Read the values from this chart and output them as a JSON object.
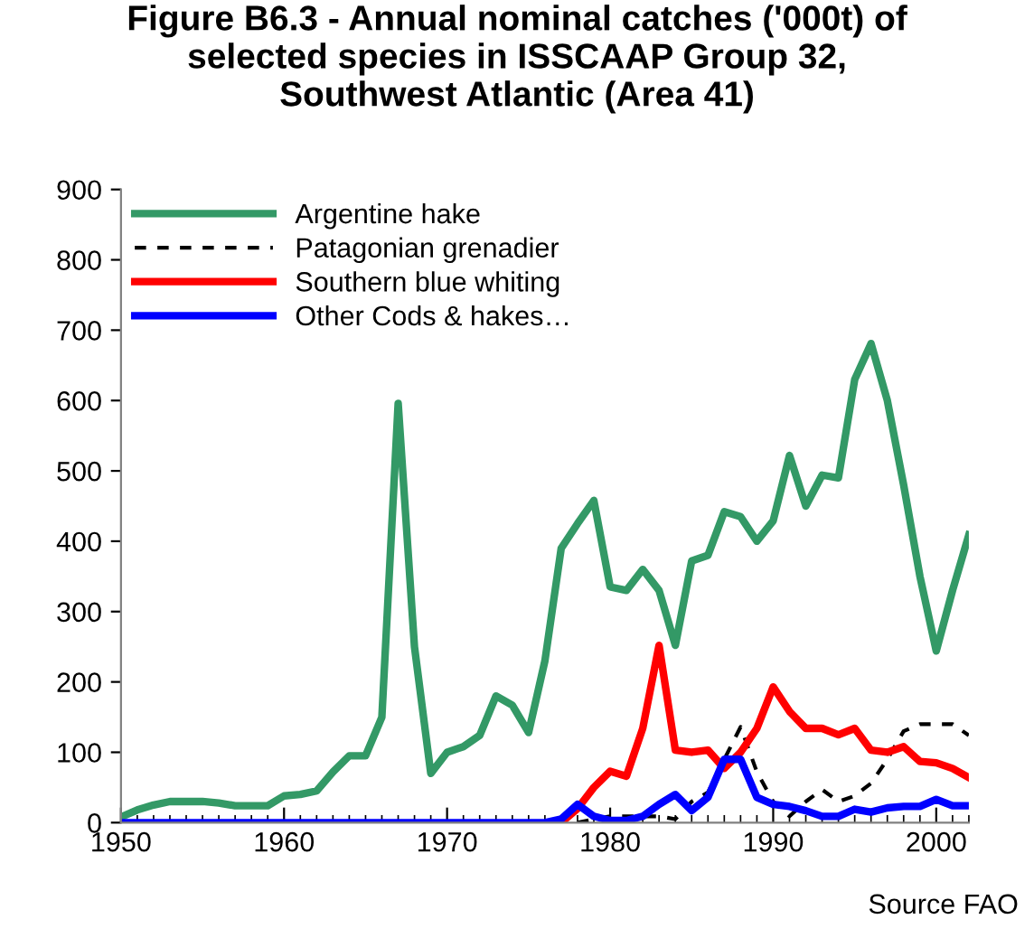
{
  "chart_data": {
    "type": "line",
    "title": "Figure B6.3 - Annual nominal catches ('000t) of\nselected species in ISSCAAP Group 32,\nSouthwest Atlantic (Area 41)",
    "x": [
      1950,
      1951,
      1952,
      1953,
      1954,
      1955,
      1956,
      1957,
      1958,
      1959,
      1960,
      1961,
      1962,
      1963,
      1964,
      1965,
      1966,
      1967,
      1968,
      1969,
      1970,
      1971,
      1972,
      1973,
      1974,
      1975,
      1976,
      1977,
      1978,
      1979,
      1980,
      1981,
      1982,
      1983,
      1984,
      1985,
      1986,
      1987,
      1988,
      1989,
      1990,
      1991,
      1992,
      1993,
      1994,
      1995,
      1996,
      1997,
      1998,
      1999,
      2000,
      2001,
      2002
    ],
    "series": [
      {
        "name": "Argentine hake",
        "color": "#339966",
        "line_style": "solid",
        "values": [
          8,
          18,
          25,
          30,
          30,
          30,
          28,
          24,
          24,
          24,
          38,
          40,
          45,
          72,
          95,
          95,
          150,
          596,
          250,
          70,
          100,
          108,
          124,
          180,
          167,
          128,
          230,
          390,
          425,
          458,
          335,
          330,
          360,
          330,
          252,
          372,
          380,
          442,
          435,
          400,
          429,
          522,
          450,
          494,
          490,
          630,
          681,
          600,
          480,
          350,
          244,
          330,
          409
        ]
      },
      {
        "name": "Patagonian grenadier",
        "color": "#000000",
        "line_style": "dashed",
        "values": [
          null,
          null,
          null,
          null,
          null,
          null,
          null,
          null,
          null,
          null,
          null,
          null,
          null,
          null,
          null,
          null,
          null,
          null,
          null,
          null,
          null,
          null,
          null,
          null,
          null,
          null,
          null,
          null,
          0,
          5,
          9,
          9,
          9,
          9,
          5,
          30,
          43,
          90,
          136,
          72,
          30,
          9,
          30,
          47,
          30,
          38,
          56,
          90,
          130,
          140,
          140,
          140,
          124
        ]
      },
      {
        "name": "Southern blue whiting",
        "color": "#ff0000",
        "line_style": "solid",
        "values": [
          null,
          null,
          null,
          null,
          null,
          null,
          null,
          null,
          null,
          null,
          null,
          null,
          null,
          null,
          null,
          null,
          null,
          null,
          null,
          null,
          null,
          null,
          null,
          null,
          null,
          null,
          null,
          0,
          20,
          50,
          73,
          66,
          134,
          252,
          103,
          100,
          103,
          77,
          100,
          134,
          193,
          158,
          134,
          134,
          125,
          134,
          103,
          100,
          108,
          87,
          85,
          77,
          64
        ]
      },
      {
        "name": "Other Cods & hakes…",
        "color": "#0000ff",
        "line_style": "solid",
        "values": [
          0,
          0,
          0,
          0,
          0,
          0,
          0,
          0,
          0,
          0,
          0,
          0,
          0,
          0,
          0,
          0,
          0,
          0,
          0,
          0,
          0,
          0,
          0,
          0,
          0,
          0,
          0,
          5,
          26,
          9,
          3,
          3,
          9,
          26,
          40,
          17,
          36,
          90,
          90,
          36,
          26,
          23,
          17,
          9,
          9,
          19,
          15,
          21,
          23,
          23,
          33,
          24,
          24
        ]
      }
    ],
    "xlim": [
      1950,
      2002
    ],
    "xticks": [
      1950,
      1960,
      1970,
      1980,
      1990,
      2000
    ],
    "ylim": [
      0,
      900
    ],
    "yticks": [
      0,
      100,
      200,
      300,
      400,
      500,
      600,
      700,
      800,
      900
    ],
    "grid": false,
    "legend": "top left",
    "marker": "none",
    "annotations": [
      "Source FAO"
    ]
  }
}
